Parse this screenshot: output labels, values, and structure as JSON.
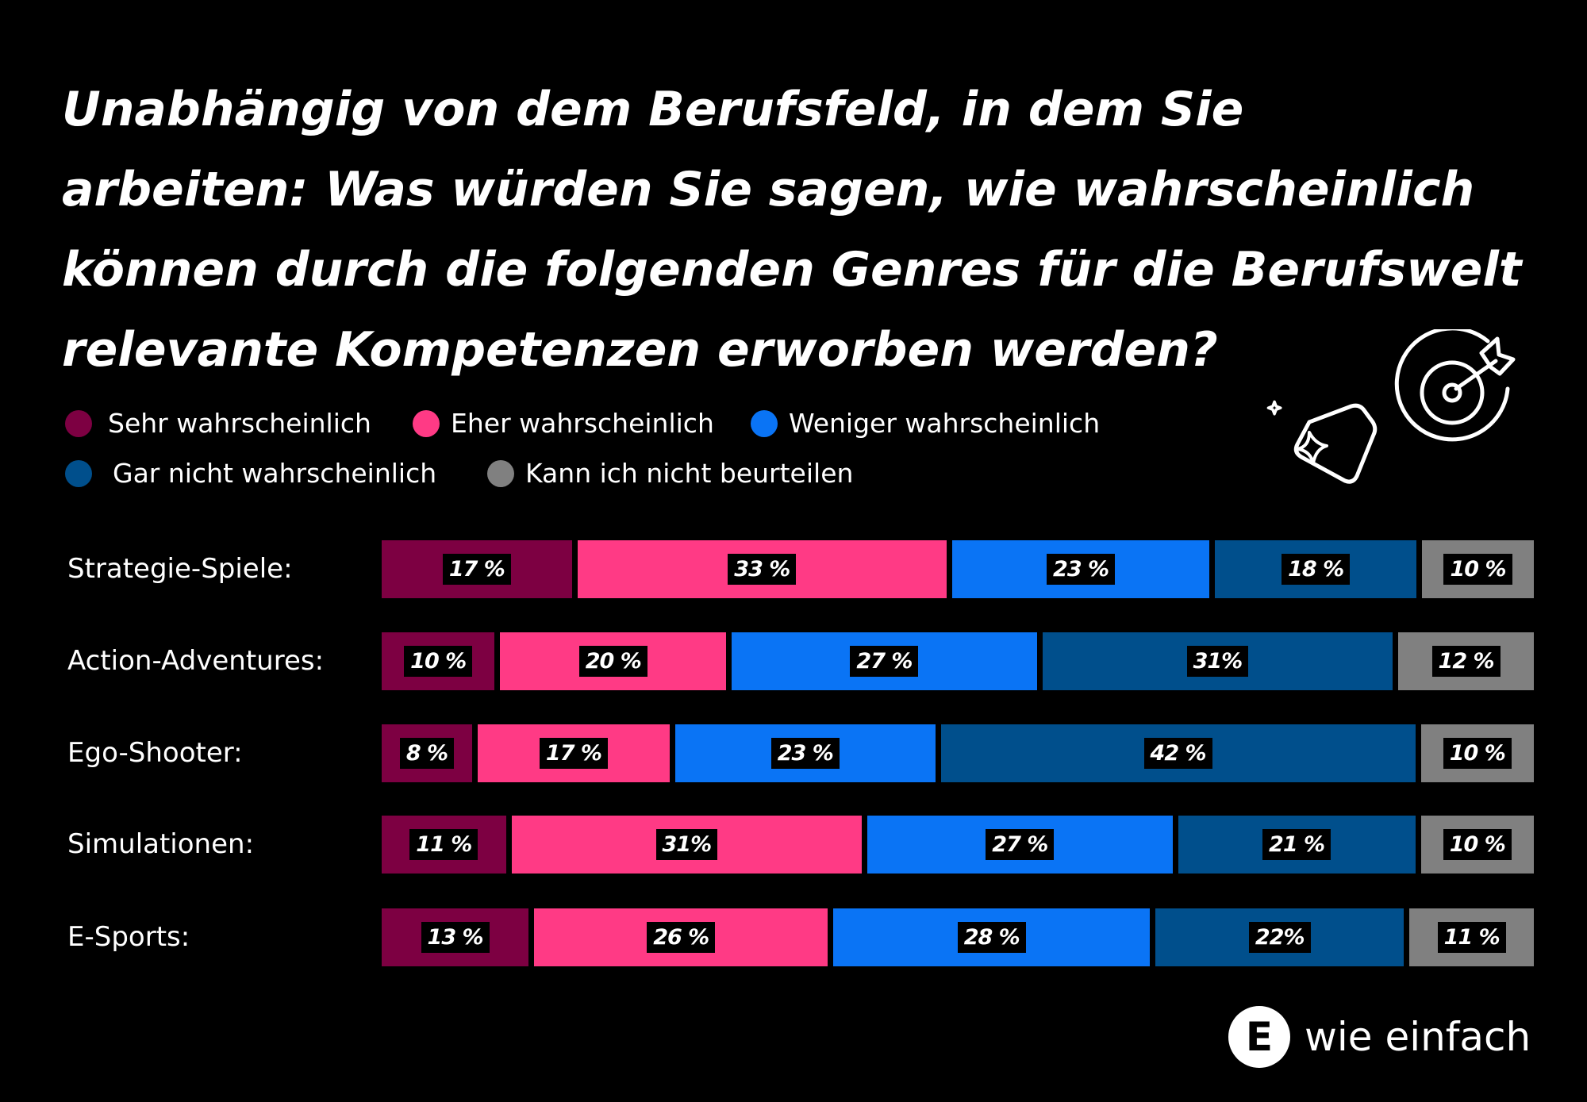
{
  "chart_data": {
    "type": "bar",
    "orientation": "horizontal-stacked",
    "title": "Unabhängig von dem Berufsfeld, in dem Sie arbeiten: Was würden Sie sagen, wie wahrscheinlich können durch die folgenden Genres für die Berufswelt relevante Kompetenzen erworben werden?",
    "title_lines": [
      "Unabhängig von dem Berufsfeld, in dem Sie",
      "arbeiten: Was würden Sie sagen, wie wahrscheinlich",
      "können durch die folgenden Genres für die Berufswelt",
      "relevante Kompetenzen erworben werden?"
    ],
    "categories": [
      "Strategie-Spiele:",
      "Action-Adventures:",
      "Ego-Shooter:",
      "Simulationen:",
      "E-Sports:"
    ],
    "series": [
      {
        "name": "Sehr wahrscheinlich",
        "color": "#7d0042",
        "values": [
          17,
          10,
          8,
          11,
          13
        ],
        "labels": [
          "17 %",
          "10 %",
          "8 %",
          "11 %",
          "13 %"
        ]
      },
      {
        "name": "Eher wahrscheinlich",
        "color": "#ff3a85",
        "values": [
          33,
          20,
          17,
          31,
          26
        ],
        "labels": [
          "33 %",
          "20 %",
          "17 %",
          "31%",
          "26 %"
        ]
      },
      {
        "name": "Weniger wahrscheinlich",
        "color": "#0a74f5",
        "values": [
          23,
          27,
          23,
          27,
          28
        ],
        "labels": [
          "23 %",
          "27 %",
          "23 %",
          "27 %",
          "28 %"
        ]
      },
      {
        "name": "Gar nicht wahrscheinlich",
        "color": "#004f8c",
        "values": [
          18,
          31,
          42,
          21,
          22
        ],
        "labels": [
          "18 %",
          "31%",
          "42 %",
          "21 %",
          "22%"
        ]
      },
      {
        "name": "Kann ich nicht beurteilen",
        "color": "#808080",
        "values": [
          10,
          12,
          10,
          10,
          11
        ],
        "labels": [
          "10 %",
          "12 %",
          "10 %",
          "10 %",
          "11 %"
        ]
      }
    ],
    "unit": "%",
    "legend": "top-left",
    "grid": false
  },
  "icons": [
    "price-tag-sparkle-icon",
    "target-arrow-icon"
  ],
  "brand": {
    "logo_letter": "E",
    "name": "wie einfach"
  }
}
